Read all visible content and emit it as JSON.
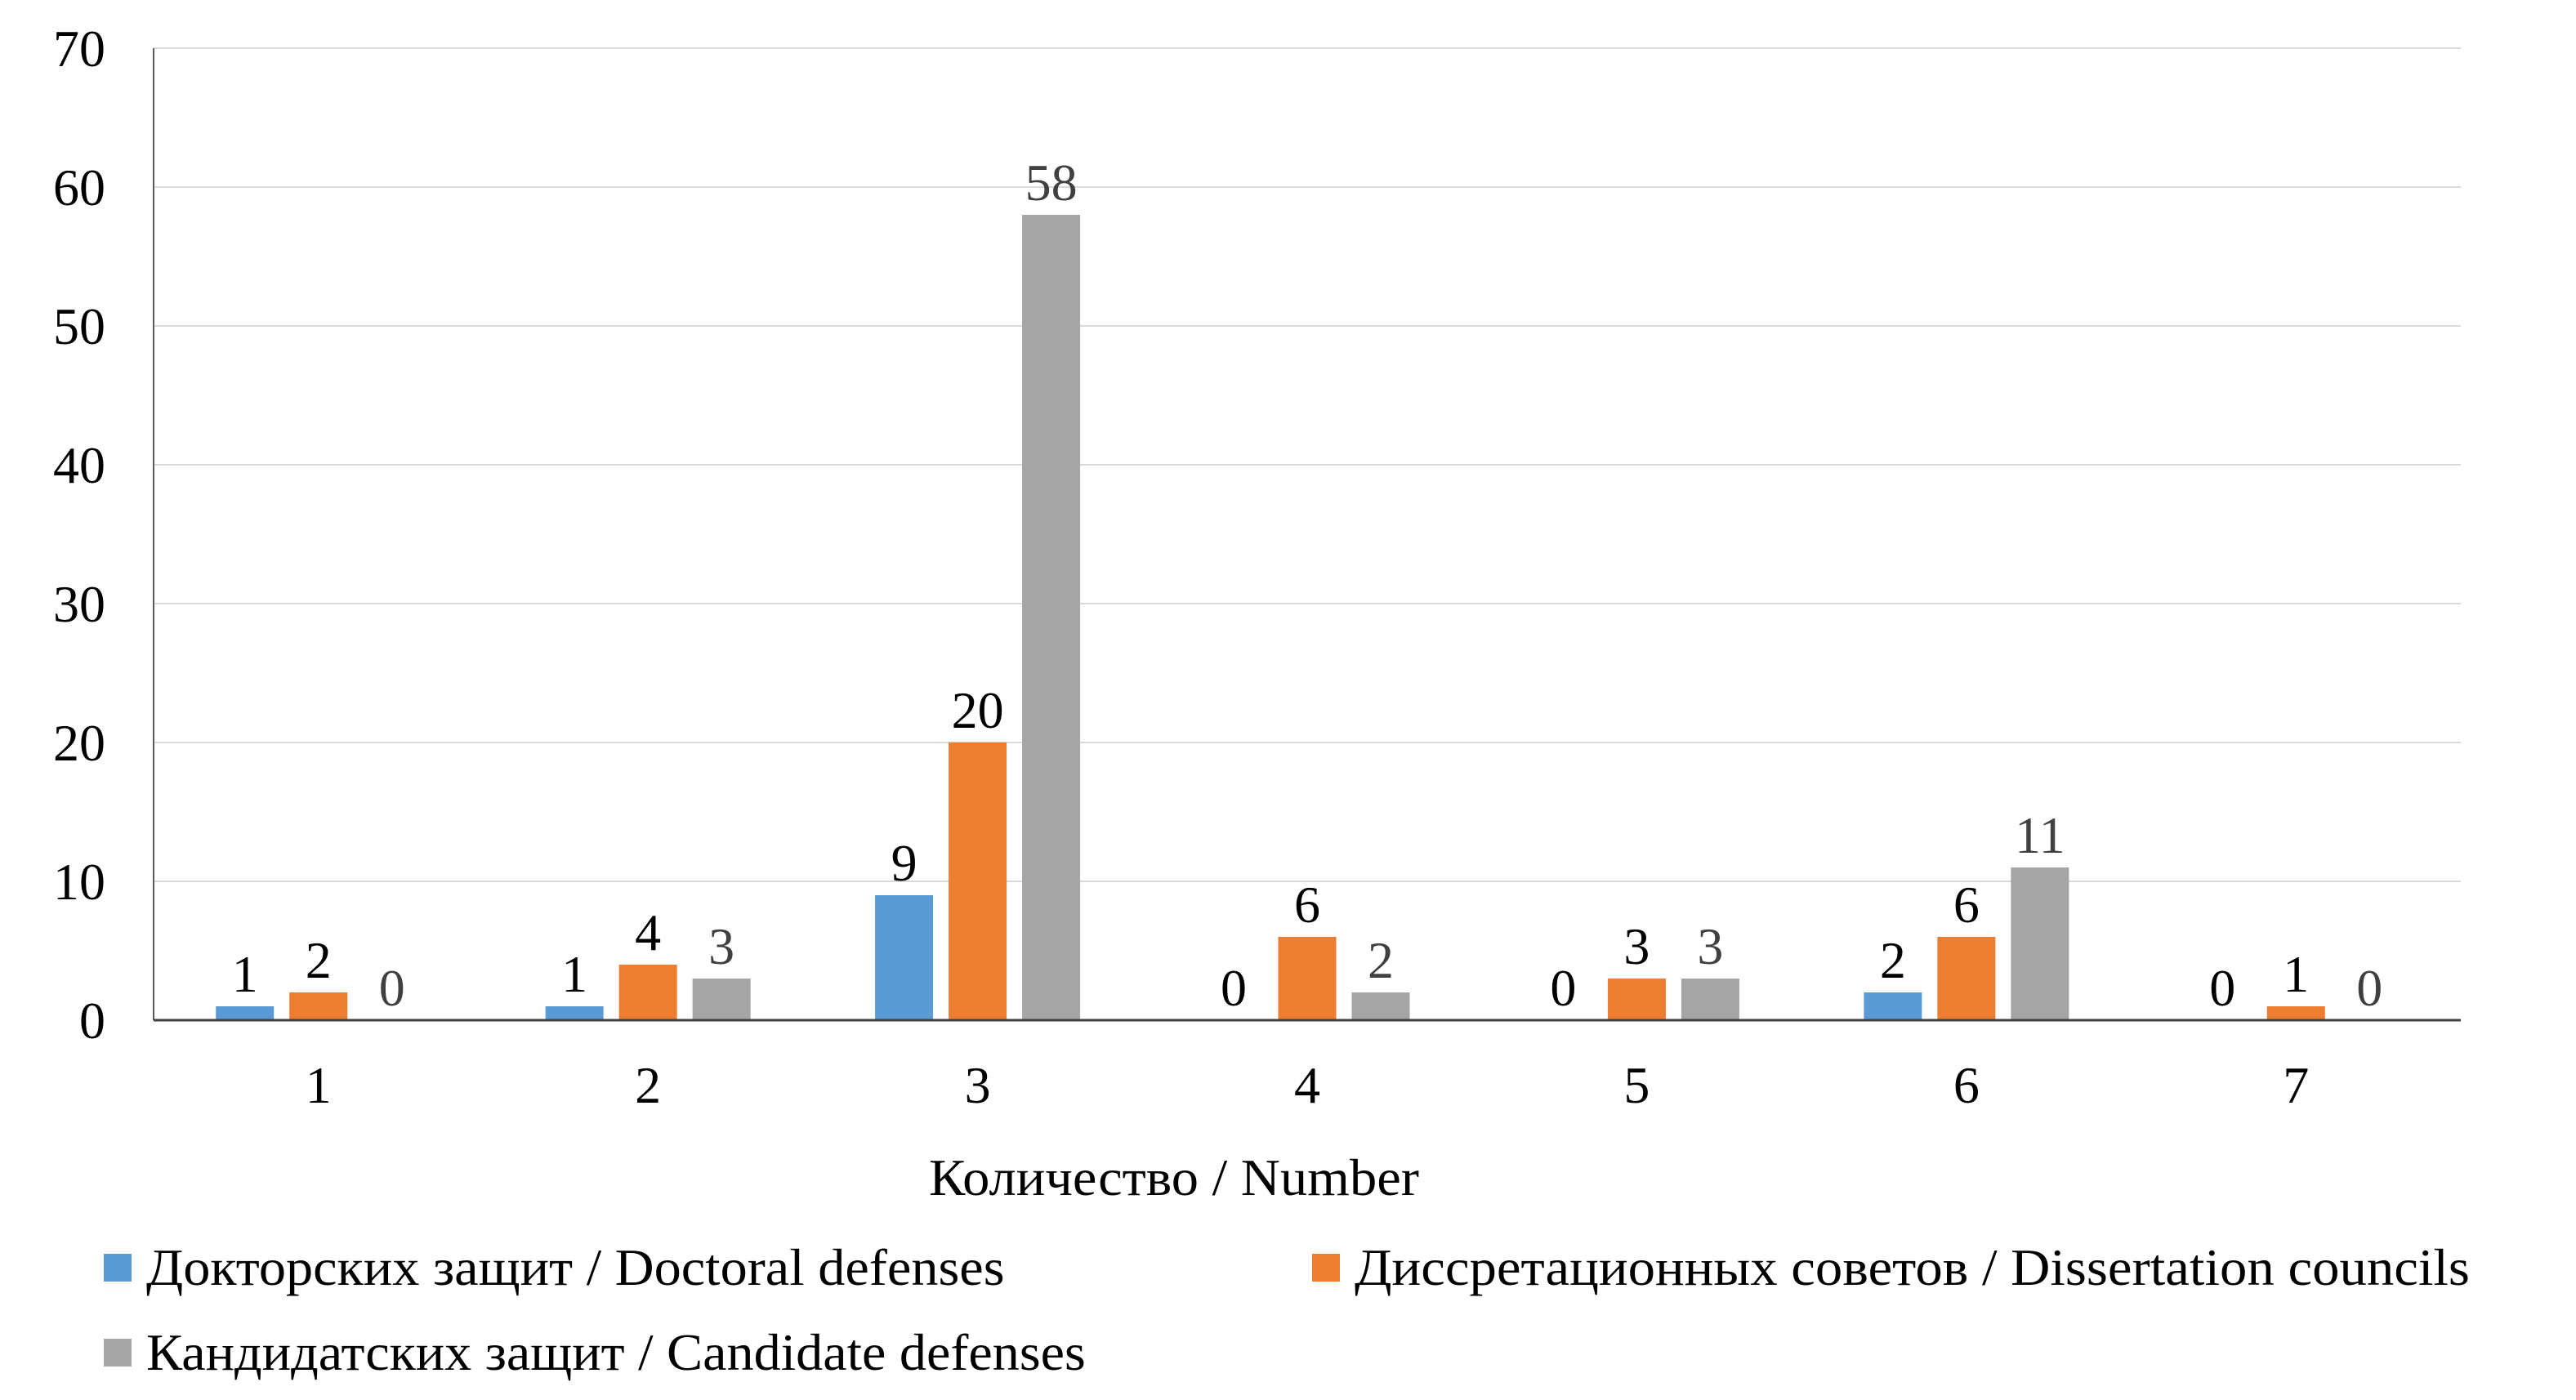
{
  "chart_data": {
    "type": "bar",
    "title": "",
    "xlabel": "Количество / Number",
    "ylabel": "",
    "categories": [
      "1",
      "2",
      "3",
      "4",
      "5",
      "6",
      "7"
    ],
    "ylim": [
      0,
      70
    ],
    "yticks": [
      0,
      10,
      20,
      30,
      40,
      50,
      60,
      70
    ],
    "grid": true,
    "legend_position": "bottom",
    "data_labels": true,
    "series": [
      {
        "name": "Докторских защит / Doctoral defenses",
        "color": "#5B9BD5",
        "label_color": "#000000",
        "values": [
          1,
          1,
          9,
          0,
          0,
          2,
          0
        ]
      },
      {
        "name": "Диссретационных советов / Dissertation councils",
        "color": "#ED7D31",
        "label_color": "#000000",
        "values": [
          2,
          4,
          20,
          6,
          3,
          6,
          1
        ]
      },
      {
        "name": "Кандидатских защит / Candidate defenses",
        "color": "#A5A5A5",
        "label_color": "#404040",
        "values": [
          0,
          3,
          58,
          2,
          3,
          11,
          0
        ]
      }
    ]
  },
  "legend": {
    "items": [
      {
        "label": "Докторских защит / Doctoral defenses",
        "color": "#5B9BD5"
      },
      {
        "label": "Диссретационных советов / Dissertation councils",
        "color": "#ED7D31"
      },
      {
        "label": "Кандидатских защит / Candidate defenses",
        "color": "#A5A5A5"
      }
    ]
  }
}
